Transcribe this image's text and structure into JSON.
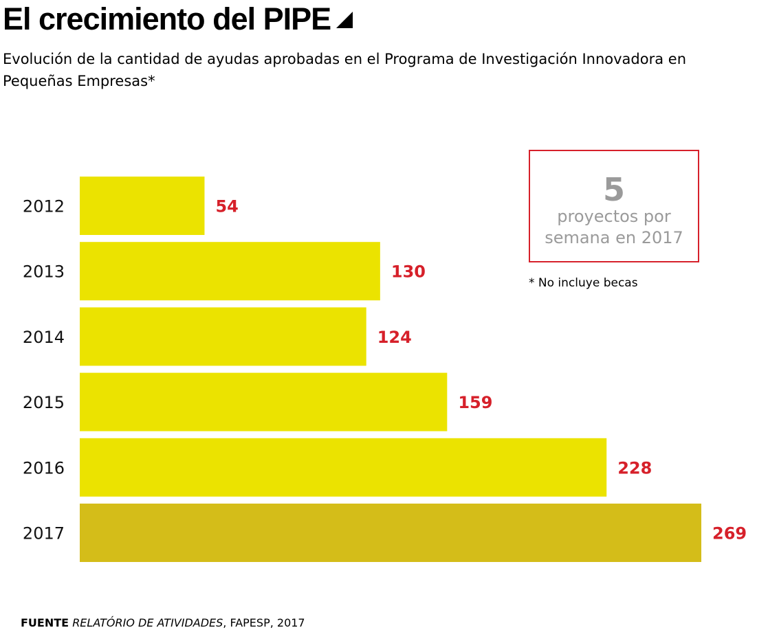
{
  "title": "El crecimiento del PIPE",
  "subtitle": "Evolución de la cantidad de ayudas aprobadas en el Programa de Investigación Innovadora en Pequeñas Empresas*",
  "callout": {
    "number": "5",
    "line1": "proyectos por",
    "line2": "semana en 2017"
  },
  "footnote": "* No incluye becas",
  "source": {
    "label": "FUENTE",
    "italic": "RELATÓRIO DE ATIVIDADES",
    "rest": ", FAPESP, 2017"
  },
  "colors": {
    "bar": "#ebe300",
    "bar_highlight": "#d4bd19",
    "value_label": "#d6202a",
    "callout_border": "#d6202a",
    "callout_text": "#9a9a9a"
  },
  "chart_data": {
    "type": "bar",
    "orientation": "horizontal",
    "categories": [
      "2012",
      "2013",
      "2014",
      "2015",
      "2016",
      "2017"
    ],
    "values": [
      54,
      130,
      124,
      159,
      228,
      269
    ],
    "value_labels": [
      "54",
      "130",
      "124",
      "159",
      "228",
      "269"
    ],
    "highlight_category": "2017",
    "title": "El crecimiento del PIPE",
    "xlabel": "",
    "ylabel": "",
    "xlim": [
      0,
      269
    ],
    "grid": false,
    "legend": "none"
  }
}
